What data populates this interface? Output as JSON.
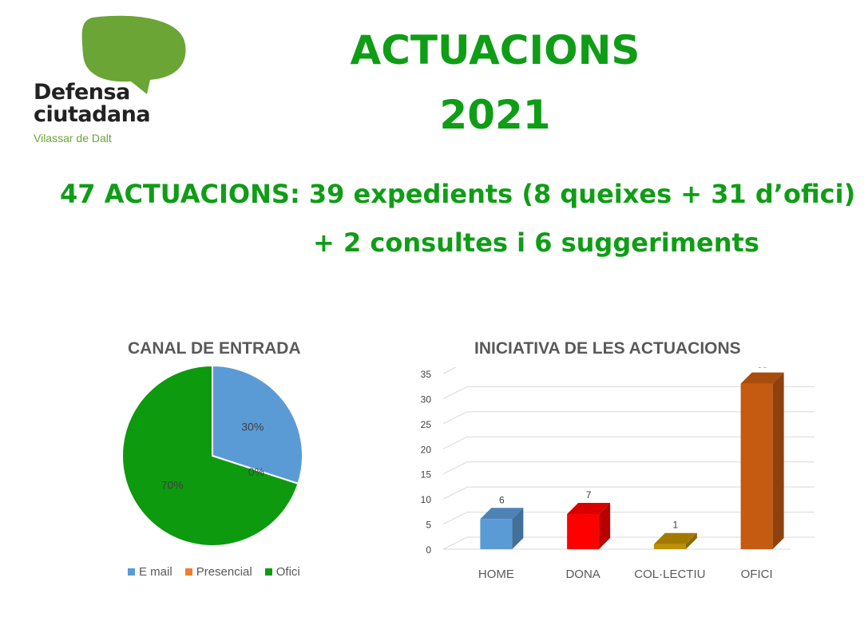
{
  "logo": {
    "line1": "Defensa",
    "line2": "ciutadana",
    "subtitle": "Vilassar de Dalt",
    "bubble_color": "#6aa536"
  },
  "header": {
    "title_line1": "ACTUACIONS",
    "title_line2": "2021",
    "summary_line1": "47 ACTUACIONS: 39 expedients (8 queixes + 31 d’ofici)",
    "summary_line2": "+ 2 consultes  i 6 suggeriments",
    "accent_color": "#0f9d16"
  },
  "chart_data": [
    {
      "type": "pie",
      "title": "CANAL DE ENTRADA",
      "categories": [
        "E mail",
        "Presencial",
        "Ofici"
      ],
      "values": [
        30,
        0,
        70
      ],
      "labels": [
        "30%",
        "0%",
        "70%"
      ],
      "colors": [
        "#5b9bd5",
        "#ed7d31",
        "#0e9a0e"
      ],
      "legend": "bottom"
    },
    {
      "type": "bar",
      "title": "INICIATIVA DE LES ACTUACIONS",
      "categories": [
        "HOME",
        "DONA",
        "COL·LECTIU",
        "OFICI"
      ],
      "values": [
        6,
        7,
        1,
        33
      ],
      "colors": [
        "#5b9bd5",
        "#ff0000",
        "#bf9000",
        "#c55a11"
      ],
      "ylim": [
        0,
        35
      ],
      "yticks": [
        "0",
        "5",
        "10",
        "15",
        "20",
        "25",
        "30",
        "35"
      ],
      "grid": true,
      "style": "3d"
    }
  ]
}
